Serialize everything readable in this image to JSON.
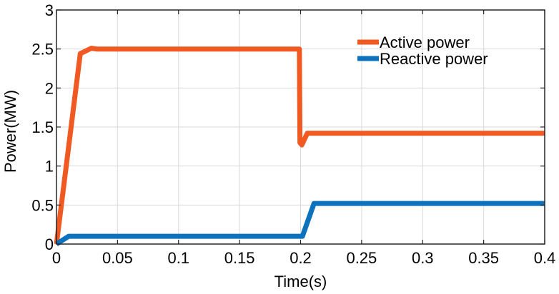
{
  "chart_data": {
    "type": "line",
    "title": "",
    "xlabel": "Time(s)",
    "ylabel": "Power(MW)",
    "xlim": [
      0,
      0.4
    ],
    "ylim": [
      0,
      3
    ],
    "xticks": [
      0,
      0.05,
      0.1,
      0.15,
      0.2,
      0.25,
      0.3,
      0.35,
      0.4
    ],
    "xtick_labels": [
      "0",
      "0.05",
      "0.1",
      "0.15",
      "0.2",
      "0.25",
      "0.3",
      "0.35",
      "0.4"
    ],
    "yticks": [
      0,
      0.5,
      1,
      1.5,
      2,
      2.5,
      3
    ],
    "ytick_labels": [
      "0",
      "0.5",
      "1",
      "1.5",
      "2",
      "2.5",
      "3"
    ],
    "grid": true,
    "legend_position": "top-right",
    "series": [
      {
        "name": "Active power",
        "color": "#f05a22",
        "x": [
          0,
          0.0195,
          0.0285,
          0.033,
          0.199,
          0.1995,
          0.201,
          0.2055,
          0.4
        ],
        "y": [
          0,
          2.44,
          2.51,
          2.5,
          2.5,
          1.3,
          1.27,
          1.42,
          1.42
        ]
      },
      {
        "name": "Reactive power",
        "color": "#0c72bd",
        "x": [
          0,
          0.01,
          0.199,
          0.2015,
          0.211,
          0.4
        ],
        "y": [
          0,
          0.1,
          0.1,
          0.1,
          0.52,
          0.52
        ]
      }
    ]
  }
}
